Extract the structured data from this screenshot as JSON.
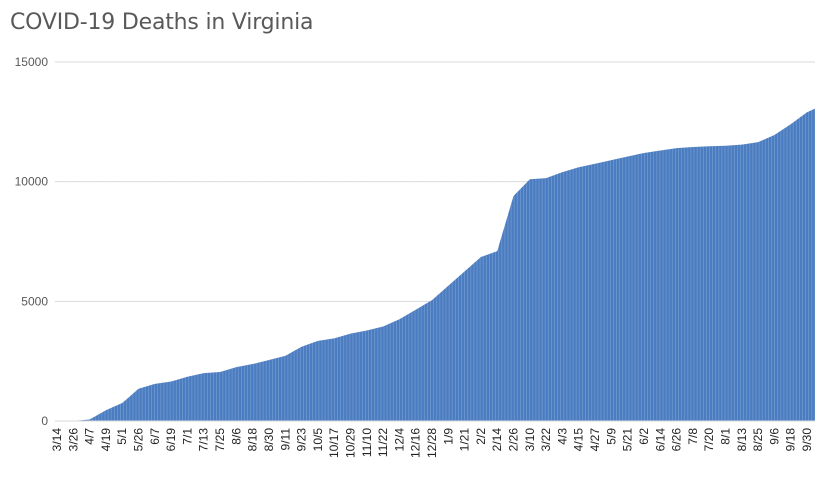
{
  "chart_data": {
    "type": "bar",
    "title": "COVID-19 Deaths in Virginia",
    "xlabel": "",
    "ylabel": "",
    "ylim": [
      0,
      15000
    ],
    "yticks": [
      0,
      5000,
      10000,
      15000
    ],
    "grid": true,
    "legend": "none",
    "bar_color": "#4a7cc1",
    "grid_color": "#d9d9d9",
    "tick_labels": [
      "3/14",
      "3/26",
      "4/7",
      "4/19",
      "5/1",
      "5/26",
      "6/7",
      "6/19",
      "7/1",
      "7/13",
      "7/25",
      "8/6",
      "8/18",
      "8/30",
      "9/11",
      "9/23",
      "10/5",
      "10/17",
      "10/29",
      "11/10",
      "11/22",
      "12/4",
      "12/16",
      "12/28",
      "1/9",
      "1/21",
      "2/2",
      "2/14",
      "2/26",
      "3/10",
      "3/22",
      "4/3",
      "4/15",
      "4/27",
      "5/9",
      "5/21",
      "6/2",
      "6/14",
      "6/26",
      "7/8",
      "7/20",
      "8/1",
      "8/13",
      "8/25",
      "9/6",
      "9/18",
      "9/30"
    ],
    "series": [
      {
        "x": [
          "3/14",
          "3/26",
          "4/7",
          "4/19",
          "5/1",
          "5/26",
          "6/7",
          "6/19",
          "7/1",
          "7/13",
          "7/25",
          "8/6",
          "8/18",
          "8/30",
          "9/11",
          "9/23",
          "10/5",
          "10/17",
          "10/29",
          "11/10",
          "11/22",
          "12/4",
          "12/16",
          "12/28",
          "1/9",
          "1/21",
          "2/2",
          "2/14",
          "2/26",
          "3/10",
          "3/22",
          "4/3",
          "4/15",
          "4/27",
          "5/9",
          "5/21",
          "6/2",
          "6/14",
          "6/26",
          "7/8",
          "7/20",
          "8/1",
          "8/13",
          "8/25",
          "9/6",
          "9/18",
          "9/30"
        ],
        "values": [
          0,
          5,
          60,
          450,
          750,
          1350,
          1550,
          1650,
          1850,
          2000,
          2050,
          2250,
          2380,
          2550,
          2720,
          3100,
          3350,
          3450,
          3650,
          3780,
          3950,
          4250,
          4650,
          5050,
          5650,
          6250,
          6850,
          7100,
          9400,
          10100,
          10150,
          10400,
          10600,
          10750,
          10900,
          11050,
          11200,
          11300,
          11400,
          11450,
          11480,
          11500,
          11550,
          11650,
          11950,
          12400,
          12900
        ]
      }
    ]
  }
}
